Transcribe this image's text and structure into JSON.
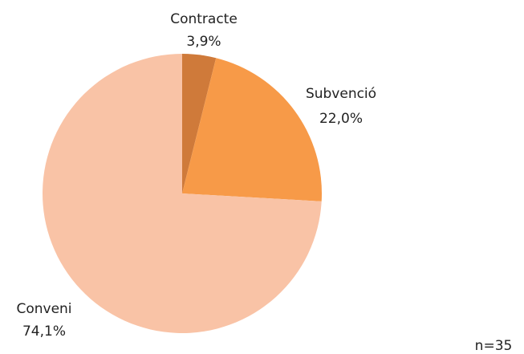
{
  "chart_data": {
    "type": "pie",
    "categories": [
      "Contracte",
      "Subvenció",
      "Conveni"
    ],
    "values": [
      3.9,
      22.0,
      74.1
    ],
    "value_labels": [
      "3,9%",
      "22,0%",
      "74,1%"
    ],
    "colors": [
      "#cf7a3a",
      "#f79a48",
      "#f9c3a6"
    ],
    "annotation": "n=35"
  }
}
